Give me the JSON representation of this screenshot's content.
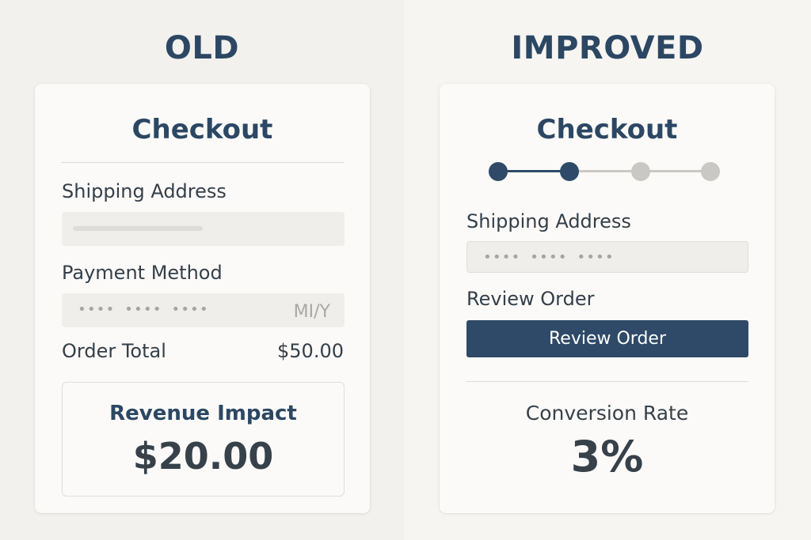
{
  "old": {
    "heading": "OLD",
    "card_title": "Checkout",
    "shipping_label": "Shipping Address",
    "payment_label": "Payment Method",
    "card_number_mask": "•••• •••• ••••",
    "expiry_placeholder": "MI/Y",
    "order_total_label": "Order Total",
    "order_total_value": "$50.00",
    "impact_label": "Revenue Impact",
    "impact_value": "$20.00"
  },
  "improved": {
    "heading": "IMPROVED",
    "card_title": "Checkout",
    "steps_total": 4,
    "steps_completed": 2,
    "shipping_label": "Shipping Address",
    "address_mask": "•••• •••• ••••",
    "review_label": "Review Order",
    "review_button": "Review Order",
    "conversion_label": "Conversion Rate",
    "conversion_value": "3%"
  },
  "colors": {
    "accent": "#2e4a68",
    "heading": "#2c4763",
    "step_inactive": "#c9c8c5",
    "step_active": "#2e4a68"
  }
}
